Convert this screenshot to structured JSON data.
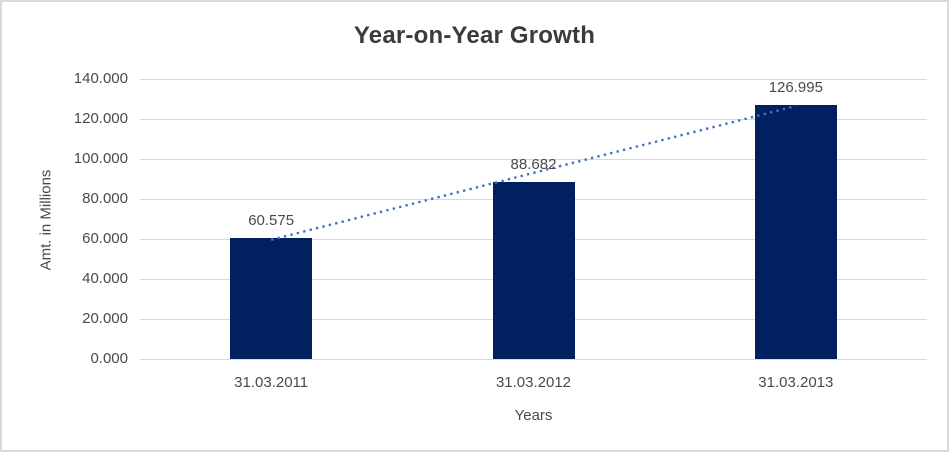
{
  "chart_data": {
    "type": "bar",
    "title": "Year-on-Year Growth",
    "xlabel": "Years",
    "ylabel": "Amt. in Millions",
    "categories": [
      "31.03.2011",
      "31.03.2012",
      "31.03.2013"
    ],
    "values": [
      60.575,
      88.682,
      126.995
    ],
    "data_labels": [
      "60.575",
      "88.682",
      "126.995"
    ],
    "y_ticks": [
      "140.000",
      "120.000",
      "100.000",
      "80.000",
      "60.000",
      "40.000",
      "20.000",
      "0.000"
    ],
    "ylim": [
      0,
      140
    ],
    "grid": true,
    "legend": false,
    "trendline": {
      "type": "linear",
      "style": "dotted",
      "from_category": "31.03.2011",
      "to_category": "31.03.2013"
    },
    "colors": {
      "bar": "#002060",
      "trendline": "#4472c4",
      "gridline": "#d9d9d9",
      "frame_border": "#d9d9d9",
      "title_text": "#3b3b3b",
      "axis_text": "#4a4a4a"
    }
  }
}
